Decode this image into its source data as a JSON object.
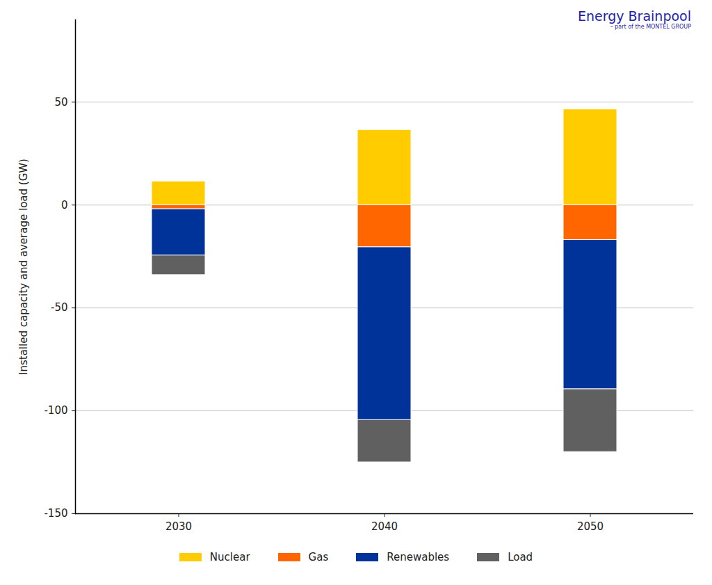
{
  "chart_data": {
    "type": "bar",
    "stacked": true,
    "y_label": "Installed capacity and average load (GW)",
    "annotations": [
      "Energy Brainpool",
      "– part of the MONTEL GROUP"
    ],
    "categories": [
      "2030",
      "2040",
      "2050"
    ],
    "series": [
      {
        "name": "Nuclear",
        "color": "#ffcc00",
        "values": [
          11.5,
          36.5,
          46.5
        ]
      },
      {
        "name": "Gas",
        "color": "#ff6600",
        "values": [
          -2,
          -20.5,
          -17
        ]
      },
      {
        "name": "Renewables",
        "color": "#003399",
        "values": [
          -22.5,
          -84,
          -72.5
        ]
      },
      {
        "name": "Load",
        "color": "#606060",
        "values": [
          -9.5,
          -20.5,
          -30.5
        ]
      }
    ],
    "ylim": [
      -150,
      90
    ],
    "yticks": [
      -150,
      -100,
      -50,
      0,
      50
    ],
    "grid": true,
    "legend": "bottom"
  }
}
